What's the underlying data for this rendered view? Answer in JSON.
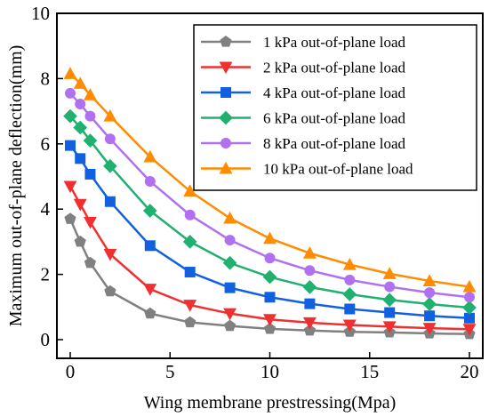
{
  "chart_data": {
    "type": "line",
    "xlabel": "Wing membrane prestressing(Mpa)",
    "ylabel": "Maximum out-of-plane deflection(mm)",
    "xlim": [
      0,
      20
    ],
    "ylim": [
      0,
      10
    ],
    "xticks": [
      0,
      5,
      10,
      15,
      20
    ],
    "yticks": [
      0,
      2,
      4,
      6,
      8,
      10
    ],
    "grid": false,
    "legend_position": "top-right",
    "x": [
      0,
      0.5,
      1,
      2,
      4,
      6,
      8,
      10,
      12,
      14,
      16,
      18,
      20
    ],
    "series": [
      {
        "name": "1 kPa out-of-plane load",
        "color": "#808080",
        "marker": "pentagon",
        "values": [
          3.7,
          3.0,
          2.35,
          1.48,
          0.8,
          0.53,
          0.42,
          0.33,
          0.28,
          0.24,
          0.22,
          0.19,
          0.17
        ]
      },
      {
        "name": "2 kPa out-of-plane load",
        "color": "#f03030",
        "marker": "triangle-down",
        "values": [
          4.7,
          4.15,
          3.6,
          2.62,
          1.55,
          1.06,
          0.8,
          0.62,
          0.52,
          0.45,
          0.4,
          0.35,
          0.32
        ]
      },
      {
        "name": "4 kPa out-of-plane load",
        "color": "#1060e0",
        "marker": "square",
        "values": [
          5.95,
          5.55,
          5.07,
          4.23,
          2.88,
          2.07,
          1.59,
          1.3,
          1.1,
          0.94,
          0.83,
          0.73,
          0.66
        ]
      },
      {
        "name": "6 kPa out-of-plane load",
        "color": "#20b070",
        "marker": "diamond",
        "values": [
          6.85,
          6.5,
          6.1,
          5.32,
          3.95,
          3.0,
          2.35,
          1.92,
          1.61,
          1.39,
          1.22,
          1.09,
          0.98
        ]
      },
      {
        "name": "8 kPa out-of-plane load",
        "color": "#b070f0",
        "marker": "circle",
        "values": [
          7.55,
          7.22,
          6.85,
          6.15,
          4.85,
          3.82,
          3.05,
          2.5,
          2.12,
          1.83,
          1.62,
          1.44,
          1.3
        ]
      },
      {
        "name": "10 kPa out-of-plane load",
        "color": "#ff8c00",
        "marker": "triangle-up",
        "values": [
          8.15,
          7.85,
          7.5,
          6.85,
          5.6,
          4.55,
          3.72,
          3.1,
          2.65,
          2.3,
          2.02,
          1.8,
          1.62
        ]
      }
    ]
  }
}
